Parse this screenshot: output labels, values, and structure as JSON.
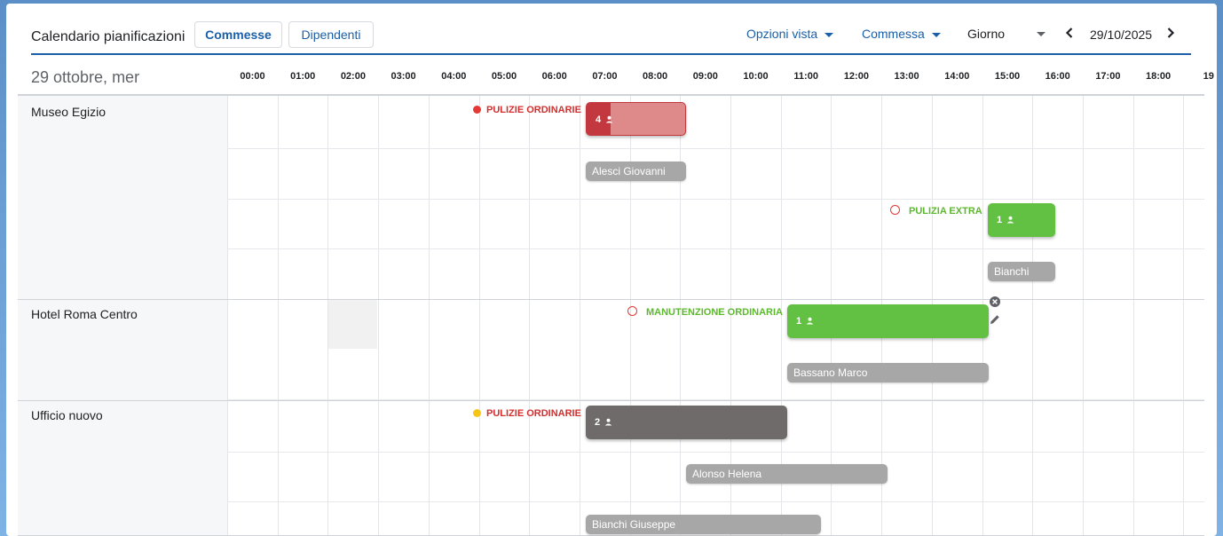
{
  "toolbar": {
    "title": "Calendario pianificazioni",
    "tab_commesse": "Commesse",
    "tab_dipendenti": "Dipendenti",
    "opzioni_vista": "Opzioni vista",
    "commessa": "Commessa",
    "view_mode": "Giorno",
    "date": "29/10/2025"
  },
  "calendar": {
    "day_label": "29 ottobre, mer",
    "hours": [
      "00:00",
      "01:00",
      "02:00",
      "03:00",
      "04:00",
      "05:00",
      "06:00",
      "07:00",
      "08:00",
      "09:00",
      "10:00",
      "11:00",
      "12:00",
      "13:00",
      "14:00",
      "15:00",
      "16:00",
      "17:00",
      "18:00",
      "19"
    ],
    "groups": [
      {
        "name": "Museo Egizio"
      },
      {
        "name": "Hotel Roma Centro"
      },
      {
        "name": "Ufficio nuovo"
      }
    ],
    "events": [
      {
        "label": "PULIZIE ORDINARIE",
        "label_color": "#d32f2f",
        "marker": "dot",
        "marker_color": "#e53935",
        "count": "4",
        "start": "07:00",
        "end": "09:00",
        "bar_color": "#de8a8b",
        "badge_color": "#c3383e",
        "employees": [
          {
            "name": "Alesci Giovanni",
            "start": "07:00",
            "end": "09:00"
          }
        ]
      },
      {
        "label": "PULIZIA EXTRA",
        "label_color": "#5cb82e",
        "marker": "ring",
        "marker_color": "#e53935",
        "count": "1",
        "start": "15:00",
        "end": "16:20",
        "bar_color": "#62c143",
        "employees": [
          {
            "name": "Bianchi",
            "start": "15:00",
            "end": "16:20"
          }
        ]
      },
      {
        "label": "MANUTENZIONE ORDINARIA",
        "label_color": "#5cb82e",
        "marker": "ring",
        "marker_color": "#e53935",
        "count": "1",
        "start": "11:00",
        "end": "15:00",
        "bar_color": "#62c143",
        "employees": [
          {
            "name": "Bassano Marco",
            "start": "11:00",
            "end": "15:00"
          }
        ]
      },
      {
        "label": "PULIZIE ORDINARIE",
        "label_color": "#d32f2f",
        "marker": "dot",
        "marker_color": "#f5c518",
        "count": "2",
        "start": "07:00",
        "end": "11:00",
        "bar_color": "#6f6b6b",
        "employees": [
          {
            "name": "Alonso Helena",
            "start": "09:00",
            "end": "13:00"
          },
          {
            "name": "Bianchi Giuseppe",
            "start": "07:00",
            "end": "11:40"
          }
        ]
      }
    ]
  }
}
